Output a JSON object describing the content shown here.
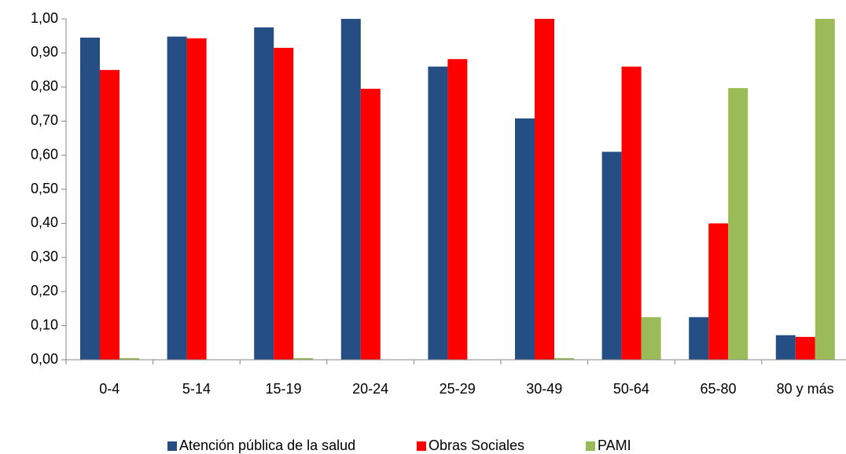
{
  "chart_data": {
    "type": "bar",
    "categories": [
      "0-4",
      "5-14",
      "15-19",
      "20-24",
      "25-29",
      "30-49",
      "50-64",
      "65-80",
      "80 y más"
    ],
    "series": [
      {
        "name": "Atención pública de la salud",
        "color": "#254f84",
        "values": [
          0.945,
          0.948,
          0.975,
          1.0,
          0.86,
          0.708,
          0.61,
          0.125,
          0.072
        ]
      },
      {
        "name": "Obras Sociales",
        "color": "#ff0000",
        "values": [
          0.85,
          0.943,
          0.915,
          0.795,
          0.882,
          1.0,
          0.86,
          0.4,
          0.067
        ]
      },
      {
        "name": "PAMI",
        "color": "#9bbb59",
        "values": [
          0.005,
          0,
          0.005,
          0,
          0,
          0.005,
          0.125,
          0.797,
          1.0
        ]
      }
    ],
    "ylim": [
      0,
      1
    ],
    "yticks": [
      {
        "value": 0,
        "label": "0,00"
      },
      {
        "value": 0.1,
        "label": "0,10"
      },
      {
        "value": 0.2,
        "label": "0,20"
      },
      {
        "value": 0.3,
        "label": "0,30"
      },
      {
        "value": 0.4,
        "label": "0,40"
      },
      {
        "value": 0.5,
        "label": "0,50"
      },
      {
        "value": 0.6,
        "label": "0,60"
      },
      {
        "value": 0.7,
        "label": "0,70"
      },
      {
        "value": 0.8,
        "label": "0,80"
      },
      {
        "value": 0.9,
        "label": "0,90"
      },
      {
        "value": 1,
        "label": "1,00"
      }
    ],
    "grid": false,
    "legend": "bottom"
  }
}
